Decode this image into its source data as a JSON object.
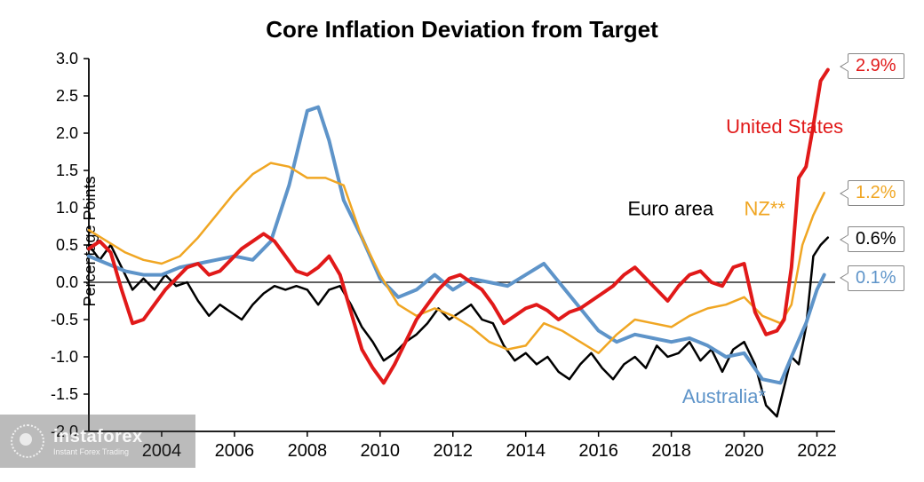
{
  "chart": {
    "type": "line",
    "title": "Core Inflation Deviation from Target",
    "title_fontsize": 26,
    "ylabel": "Percentage Points",
    "label_fontsize": 18,
    "background_color": "#ffffff",
    "grid_color": "#000000",
    "axis_color": "#000000",
    "xlim": [
      2002,
      2022.5
    ],
    "ylim": [
      -2.0,
      3.0
    ],
    "ytick_step": 0.5,
    "xtick_step": 2,
    "xtick_start": 2004,
    "line_width_thick": 4,
    "line_width_thin": 2.5,
    "callout_border": "#888888",
    "series": {
      "us": {
        "label": "United States",
        "color": "#e11919",
        "end_value": "2.9%",
        "label_x": 2019.5,
        "label_y": 2.0,
        "data": [
          [
            2002.0,
            0.45
          ],
          [
            2002.3,
            0.55
          ],
          [
            2002.6,
            0.4
          ],
          [
            2002.9,
            -0.1
          ],
          [
            2003.2,
            -0.55
          ],
          [
            2003.5,
            -0.5
          ],
          [
            2003.8,
            -0.3
          ],
          [
            2004.1,
            -0.1
          ],
          [
            2004.4,
            0.05
          ],
          [
            2004.7,
            0.2
          ],
          [
            2005.0,
            0.25
          ],
          [
            2005.3,
            0.1
          ],
          [
            2005.6,
            0.15
          ],
          [
            2005.9,
            0.3
          ],
          [
            2006.2,
            0.45
          ],
          [
            2006.5,
            0.55
          ],
          [
            2006.8,
            0.65
          ],
          [
            2007.1,
            0.55
          ],
          [
            2007.4,
            0.35
          ],
          [
            2007.7,
            0.15
          ],
          [
            2008.0,
            0.1
          ],
          [
            2008.3,
            0.2
          ],
          [
            2008.6,
            0.35
          ],
          [
            2008.9,
            0.1
          ],
          [
            2009.2,
            -0.4
          ],
          [
            2009.5,
            -0.9
          ],
          [
            2009.8,
            -1.15
          ],
          [
            2010.1,
            -1.35
          ],
          [
            2010.4,
            -1.1
          ],
          [
            2010.7,
            -0.8
          ],
          [
            2011.0,
            -0.5
          ],
          [
            2011.3,
            -0.3
          ],
          [
            2011.6,
            -0.1
          ],
          [
            2011.9,
            0.05
          ],
          [
            2012.2,
            0.1
          ],
          [
            2012.5,
            0.0
          ],
          [
            2012.8,
            -0.1
          ],
          [
            2013.1,
            -0.3
          ],
          [
            2013.4,
            -0.55
          ],
          [
            2013.7,
            -0.45
          ],
          [
            2014.0,
            -0.35
          ],
          [
            2014.3,
            -0.3
          ],
          [
            2014.6,
            -0.38
          ],
          [
            2014.9,
            -0.5
          ],
          [
            2015.2,
            -0.4
          ],
          [
            2015.5,
            -0.35
          ],
          [
            2015.8,
            -0.25
          ],
          [
            2016.1,
            -0.15
          ],
          [
            2016.4,
            -0.05
          ],
          [
            2016.7,
            0.1
          ],
          [
            2017.0,
            0.2
          ],
          [
            2017.3,
            0.05
          ],
          [
            2017.6,
            -0.1
          ],
          [
            2017.9,
            -0.25
          ],
          [
            2018.2,
            -0.05
          ],
          [
            2018.5,
            0.1
          ],
          [
            2018.8,
            0.15
          ],
          [
            2019.1,
            0.0
          ],
          [
            2019.4,
            -0.05
          ],
          [
            2019.7,
            0.2
          ],
          [
            2020.0,
            0.25
          ],
          [
            2020.3,
            -0.4
          ],
          [
            2020.6,
            -0.7
          ],
          [
            2020.9,
            -0.65
          ],
          [
            2021.1,
            -0.5
          ],
          [
            2021.3,
            0.2
          ],
          [
            2021.5,
            1.4
          ],
          [
            2021.7,
            1.55
          ],
          [
            2021.9,
            2.1
          ],
          [
            2022.1,
            2.7
          ],
          [
            2022.3,
            2.85
          ]
        ]
      },
      "nz": {
        "label": "NZ**",
        "color": "#f0a623",
        "end_value": "1.2%",
        "label_x": 2020.0,
        "label_y": 0.9,
        "data": [
          [
            2002.0,
            0.7
          ],
          [
            2002.5,
            0.55
          ],
          [
            2003.0,
            0.4
          ],
          [
            2003.5,
            0.3
          ],
          [
            2004.0,
            0.25
          ],
          [
            2004.5,
            0.35
          ],
          [
            2005.0,
            0.6
          ],
          [
            2005.5,
            0.9
          ],
          [
            2006.0,
            1.2
          ],
          [
            2006.5,
            1.45
          ],
          [
            2007.0,
            1.6
          ],
          [
            2007.5,
            1.55
          ],
          [
            2008.0,
            1.4
          ],
          [
            2008.5,
            1.4
          ],
          [
            2009.0,
            1.3
          ],
          [
            2009.5,
            0.6
          ],
          [
            2010.0,
            0.1
          ],
          [
            2010.5,
            -0.3
          ],
          [
            2011.0,
            -0.45
          ],
          [
            2011.5,
            -0.35
          ],
          [
            2012.0,
            -0.45
          ],
          [
            2012.5,
            -0.6
          ],
          [
            2013.0,
            -0.8
          ],
          [
            2013.5,
            -0.9
          ],
          [
            2014.0,
            -0.85
          ],
          [
            2014.5,
            -0.55
          ],
          [
            2015.0,
            -0.65
          ],
          [
            2015.5,
            -0.8
          ],
          [
            2016.0,
            -0.95
          ],
          [
            2016.5,
            -0.7
          ],
          [
            2017.0,
            -0.5
          ],
          [
            2017.5,
            -0.55
          ],
          [
            2018.0,
            -0.6
          ],
          [
            2018.5,
            -0.45
          ],
          [
            2019.0,
            -0.35
          ],
          [
            2019.5,
            -0.3
          ],
          [
            2020.0,
            -0.2
          ],
          [
            2020.5,
            -0.45
          ],
          [
            2021.0,
            -0.55
          ],
          [
            2021.3,
            -0.3
          ],
          [
            2021.6,
            0.5
          ],
          [
            2021.9,
            0.9
          ],
          [
            2022.2,
            1.2
          ]
        ]
      },
      "euro": {
        "label": "Euro area",
        "color": "#000000",
        "end_value": "0.6%",
        "label_x": 2016.8,
        "label_y": 0.9,
        "data": [
          [
            2002.0,
            0.5
          ],
          [
            2002.3,
            0.3
          ],
          [
            2002.6,
            0.5
          ],
          [
            2002.9,
            0.2
          ],
          [
            2003.2,
            -0.1
          ],
          [
            2003.5,
            0.05
          ],
          [
            2003.8,
            -0.1
          ],
          [
            2004.1,
            0.1
          ],
          [
            2004.4,
            -0.05
          ],
          [
            2004.7,
            0.0
          ],
          [
            2005.0,
            -0.25
          ],
          [
            2005.3,
            -0.45
          ],
          [
            2005.6,
            -0.3
          ],
          [
            2005.9,
            -0.4
          ],
          [
            2006.2,
            -0.5
          ],
          [
            2006.5,
            -0.3
          ],
          [
            2006.8,
            -0.15
          ],
          [
            2007.1,
            -0.05
          ],
          [
            2007.4,
            -0.1
          ],
          [
            2007.7,
            -0.05
          ],
          [
            2008.0,
            -0.1
          ],
          [
            2008.3,
            -0.3
          ],
          [
            2008.6,
            -0.1
          ],
          [
            2008.9,
            -0.05
          ],
          [
            2009.2,
            -0.3
          ],
          [
            2009.5,
            -0.6
          ],
          [
            2009.8,
            -0.8
          ],
          [
            2010.1,
            -1.05
          ],
          [
            2010.4,
            -0.95
          ],
          [
            2010.7,
            -0.8
          ],
          [
            2011.0,
            -0.7
          ],
          [
            2011.3,
            -0.55
          ],
          [
            2011.6,
            -0.35
          ],
          [
            2011.9,
            -0.5
          ],
          [
            2012.2,
            -0.4
          ],
          [
            2012.5,
            -0.3
          ],
          [
            2012.8,
            -0.5
          ],
          [
            2013.1,
            -0.55
          ],
          [
            2013.4,
            -0.85
          ],
          [
            2013.7,
            -1.05
          ],
          [
            2014.0,
            -0.95
          ],
          [
            2014.3,
            -1.1
          ],
          [
            2014.6,
            -1.0
          ],
          [
            2014.9,
            -1.2
          ],
          [
            2015.2,
            -1.3
          ],
          [
            2015.5,
            -1.1
          ],
          [
            2015.8,
            -0.95
          ],
          [
            2016.1,
            -1.15
          ],
          [
            2016.4,
            -1.3
          ],
          [
            2016.7,
            -1.1
          ],
          [
            2017.0,
            -1.0
          ],
          [
            2017.3,
            -1.15
          ],
          [
            2017.6,
            -0.85
          ],
          [
            2017.9,
            -1.0
          ],
          [
            2018.2,
            -0.95
          ],
          [
            2018.5,
            -0.8
          ],
          [
            2018.8,
            -1.05
          ],
          [
            2019.1,
            -0.9
          ],
          [
            2019.4,
            -1.2
          ],
          [
            2019.7,
            -0.9
          ],
          [
            2020.0,
            -0.8
          ],
          [
            2020.3,
            -1.1
          ],
          [
            2020.6,
            -1.65
          ],
          [
            2020.9,
            -1.8
          ],
          [
            2021.1,
            -1.4
          ],
          [
            2021.3,
            -1.0
          ],
          [
            2021.5,
            -1.1
          ],
          [
            2021.7,
            -0.6
          ],
          [
            2021.9,
            0.35
          ],
          [
            2022.1,
            0.5
          ],
          [
            2022.3,
            0.6
          ]
        ]
      },
      "aus": {
        "label": "Australia*",
        "color": "#5e94c9",
        "end_value": "0.1%",
        "label_x": 2018.3,
        "label_y": -1.62,
        "data": [
          [
            2002.0,
            0.35
          ],
          [
            2002.5,
            0.25
          ],
          [
            2003.0,
            0.15
          ],
          [
            2003.5,
            0.1
          ],
          [
            2004.0,
            0.1
          ],
          [
            2004.5,
            0.2
          ],
          [
            2005.0,
            0.25
          ],
          [
            2005.5,
            0.3
          ],
          [
            2006.0,
            0.35
          ],
          [
            2006.5,
            0.3
          ],
          [
            2007.0,
            0.55
          ],
          [
            2007.5,
            1.3
          ],
          [
            2008.0,
            2.3
          ],
          [
            2008.3,
            2.35
          ],
          [
            2008.6,
            1.9
          ],
          [
            2009.0,
            1.1
          ],
          [
            2009.5,
            0.6
          ],
          [
            2010.0,
            0.05
          ],
          [
            2010.5,
            -0.2
          ],
          [
            2011.0,
            -0.1
          ],
          [
            2011.5,
            0.1
          ],
          [
            2012.0,
            -0.1
          ],
          [
            2012.5,
            0.05
          ],
          [
            2013.0,
            0.0
          ],
          [
            2013.5,
            -0.05
          ],
          [
            2014.0,
            0.1
          ],
          [
            2014.5,
            0.25
          ],
          [
            2015.0,
            -0.05
          ],
          [
            2015.5,
            -0.35
          ],
          [
            2016.0,
            -0.65
          ],
          [
            2016.5,
            -0.8
          ],
          [
            2017.0,
            -0.7
          ],
          [
            2017.5,
            -0.75
          ],
          [
            2018.0,
            -0.8
          ],
          [
            2018.5,
            -0.75
          ],
          [
            2019.0,
            -0.85
          ],
          [
            2019.5,
            -1.0
          ],
          [
            2020.0,
            -0.95
          ],
          [
            2020.5,
            -1.3
          ],
          [
            2021.0,
            -1.35
          ],
          [
            2021.3,
            -1.0
          ],
          [
            2021.7,
            -0.55
          ],
          [
            2022.0,
            -0.1
          ],
          [
            2022.2,
            0.1
          ]
        ]
      }
    }
  },
  "watermark": {
    "brand": "instaforex",
    "tagline": "Instant Forex Trading"
  }
}
